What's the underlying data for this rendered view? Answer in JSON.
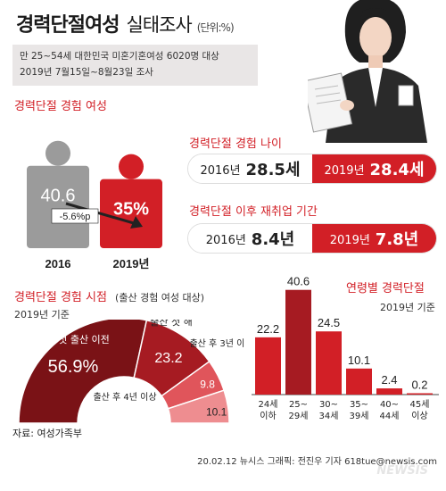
{
  "header": {
    "title": "경력단절여성",
    "subtitle": "실태조사",
    "unit": "(단위:%)"
  },
  "survey_note": {
    "line1": "만 25~54세 대한민국 미혼기혼여성 6020명 대상",
    "line2": "2019년 7월15일~8월23일 조사"
  },
  "colors": {
    "red": "#d21f26",
    "gray": "#9b9b9b",
    "dark_red": "#7a1216",
    "mid_red": "#a61b22",
    "light_red": "#e0555b",
    "lightest_red": "#ee8d90"
  },
  "sections": {
    "experience": "경력단절 경험 여성",
    "age": "경력단절 경험 나이",
    "reemploy": "경력단절 이후 재취업 기간",
    "timing": "경력단절 경험 시점",
    "timing_note": "(출산 경험 여성 대상)",
    "timing_year": "2019년 기준",
    "by_age": "연령별 경력단절",
    "by_age_year": "2019년 기준"
  },
  "age_pill": {
    "left_year": "2016년",
    "left_value": "28.5세",
    "right_year": "2019년",
    "right_value": "28.4세"
  },
  "reemploy_pill": {
    "left_year": "2016년",
    "left_value": "8.4년",
    "right_year": "2019년",
    "right_value": "7.8년"
  },
  "footer": {
    "source": "자료: 여성가족부",
    "credit": "20.02.12  뉴시스 그래픽: 전진우 기자 618tue@newsis.com",
    "watermark": "NEWSIS"
  },
  "chart_data": [
    {
      "type": "bar",
      "title": "경력단절 경험 여성",
      "categories": [
        "2016",
        "2019년"
      ],
      "values": [
        40.6,
        35
      ],
      "value_labels": [
        "40.6",
        "35%"
      ],
      "annotation": "-5.6%p",
      "colors": [
        "#9b9b9b",
        "#d21f26"
      ]
    },
    {
      "type": "pie",
      "title": "경력단절 경험 시점",
      "subtitle": "(출산 경험 여성 대상)",
      "note": "2019년 기준",
      "shape": "half-donut",
      "slices": [
        {
          "label": "첫 출산 이전",
          "value": 56.9,
          "value_label": "56.9%",
          "color": "#7a1216"
        },
        {
          "label": "출산 첫 해",
          "value": 23.2,
          "value_label": "23.2",
          "color": "#a61b22"
        },
        {
          "label": "출산 후 3년 이내",
          "value": 9.8,
          "value_label": "9.8",
          "color": "#e0555b"
        },
        {
          "label": "출산 후 4년 이상",
          "value": 10.1,
          "value_label": "10.1",
          "color": "#ee8d90"
        }
      ]
    },
    {
      "type": "bar",
      "title": "연령별 경력단절",
      "note": "2019년 기준",
      "categories": [
        "24세 이하",
        "25~ 29세",
        "30~ 34세",
        "35~ 39세",
        "40~ 44세",
        "45세 이상"
      ],
      "category_lines": [
        [
          "24세",
          "이하"
        ],
        [
          "25~",
          "29세"
        ],
        [
          "30~",
          "34세"
        ],
        [
          "35~",
          "39세"
        ],
        [
          "40~",
          "44세"
        ],
        [
          "45세",
          "이상"
        ]
      ],
      "values": [
        22.2,
        40.6,
        24.5,
        10.1,
        2.4,
        0.2
      ],
      "value_labels": [
        "22.2",
        "40.6",
        "24.5",
        "10.1",
        "2.4",
        "0.2"
      ],
      "colors": [
        "#d21f26",
        "#a61b22",
        "#d21f26",
        "#d21f26",
        "#d21f26",
        "#d21f26"
      ]
    }
  ]
}
